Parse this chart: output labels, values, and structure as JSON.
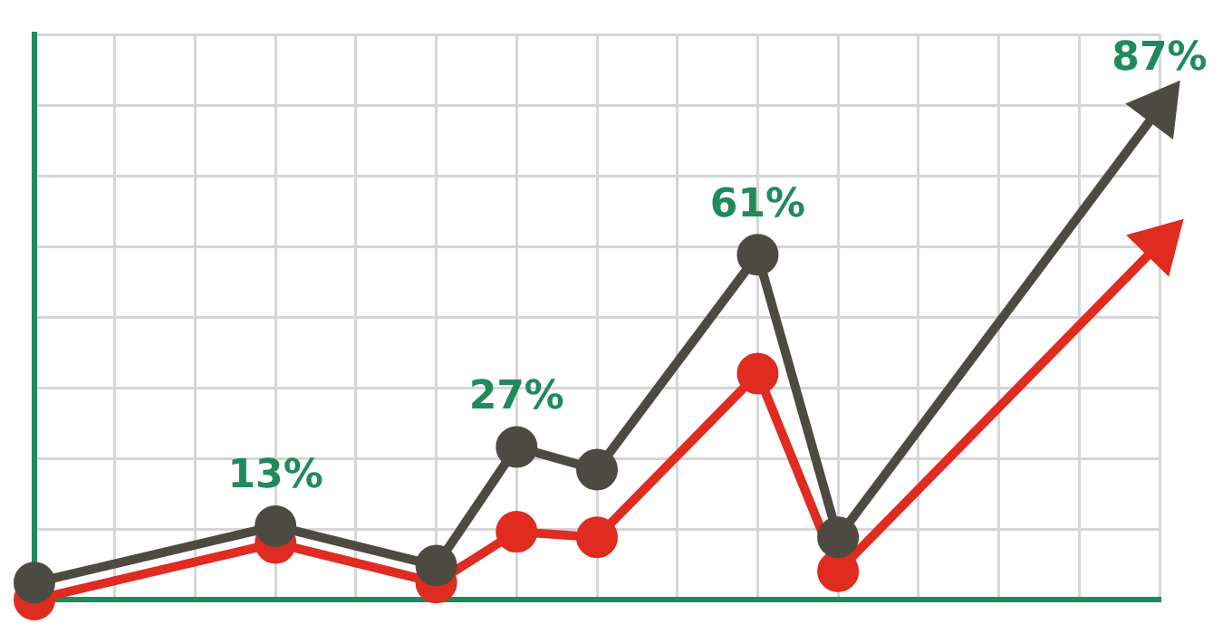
{
  "chart_data": {
    "type": "line",
    "categories": [
      null,
      null,
      null,
      null,
      null,
      null,
      null,
      null,
      null,
      null,
      null,
      null,
      null,
      null,
      null
    ],
    "series": [
      {
        "color": "#4d4a42",
        "values": [
          3,
          null,
          null,
          13,
          null,
          6,
          27,
          23,
          null,
          61,
          11,
          null,
          null,
          null,
          87
        ],
        "value_labels": [
          null,
          null,
          null,
          "13%",
          null,
          null,
          "27%",
          null,
          null,
          "61%",
          null,
          null,
          null,
          null,
          "87%"
        ]
      },
      {
        "color": "#e02b20",
        "values": [
          0,
          null,
          null,
          10,
          null,
          3,
          12,
          11,
          null,
          40,
          5,
          null,
          null,
          null,
          63
        ]
      }
    ],
    "tick_labels": false,
    "grid": true,
    "legend": false,
    "marker": "circle",
    "line_style": "solid"
  }
}
